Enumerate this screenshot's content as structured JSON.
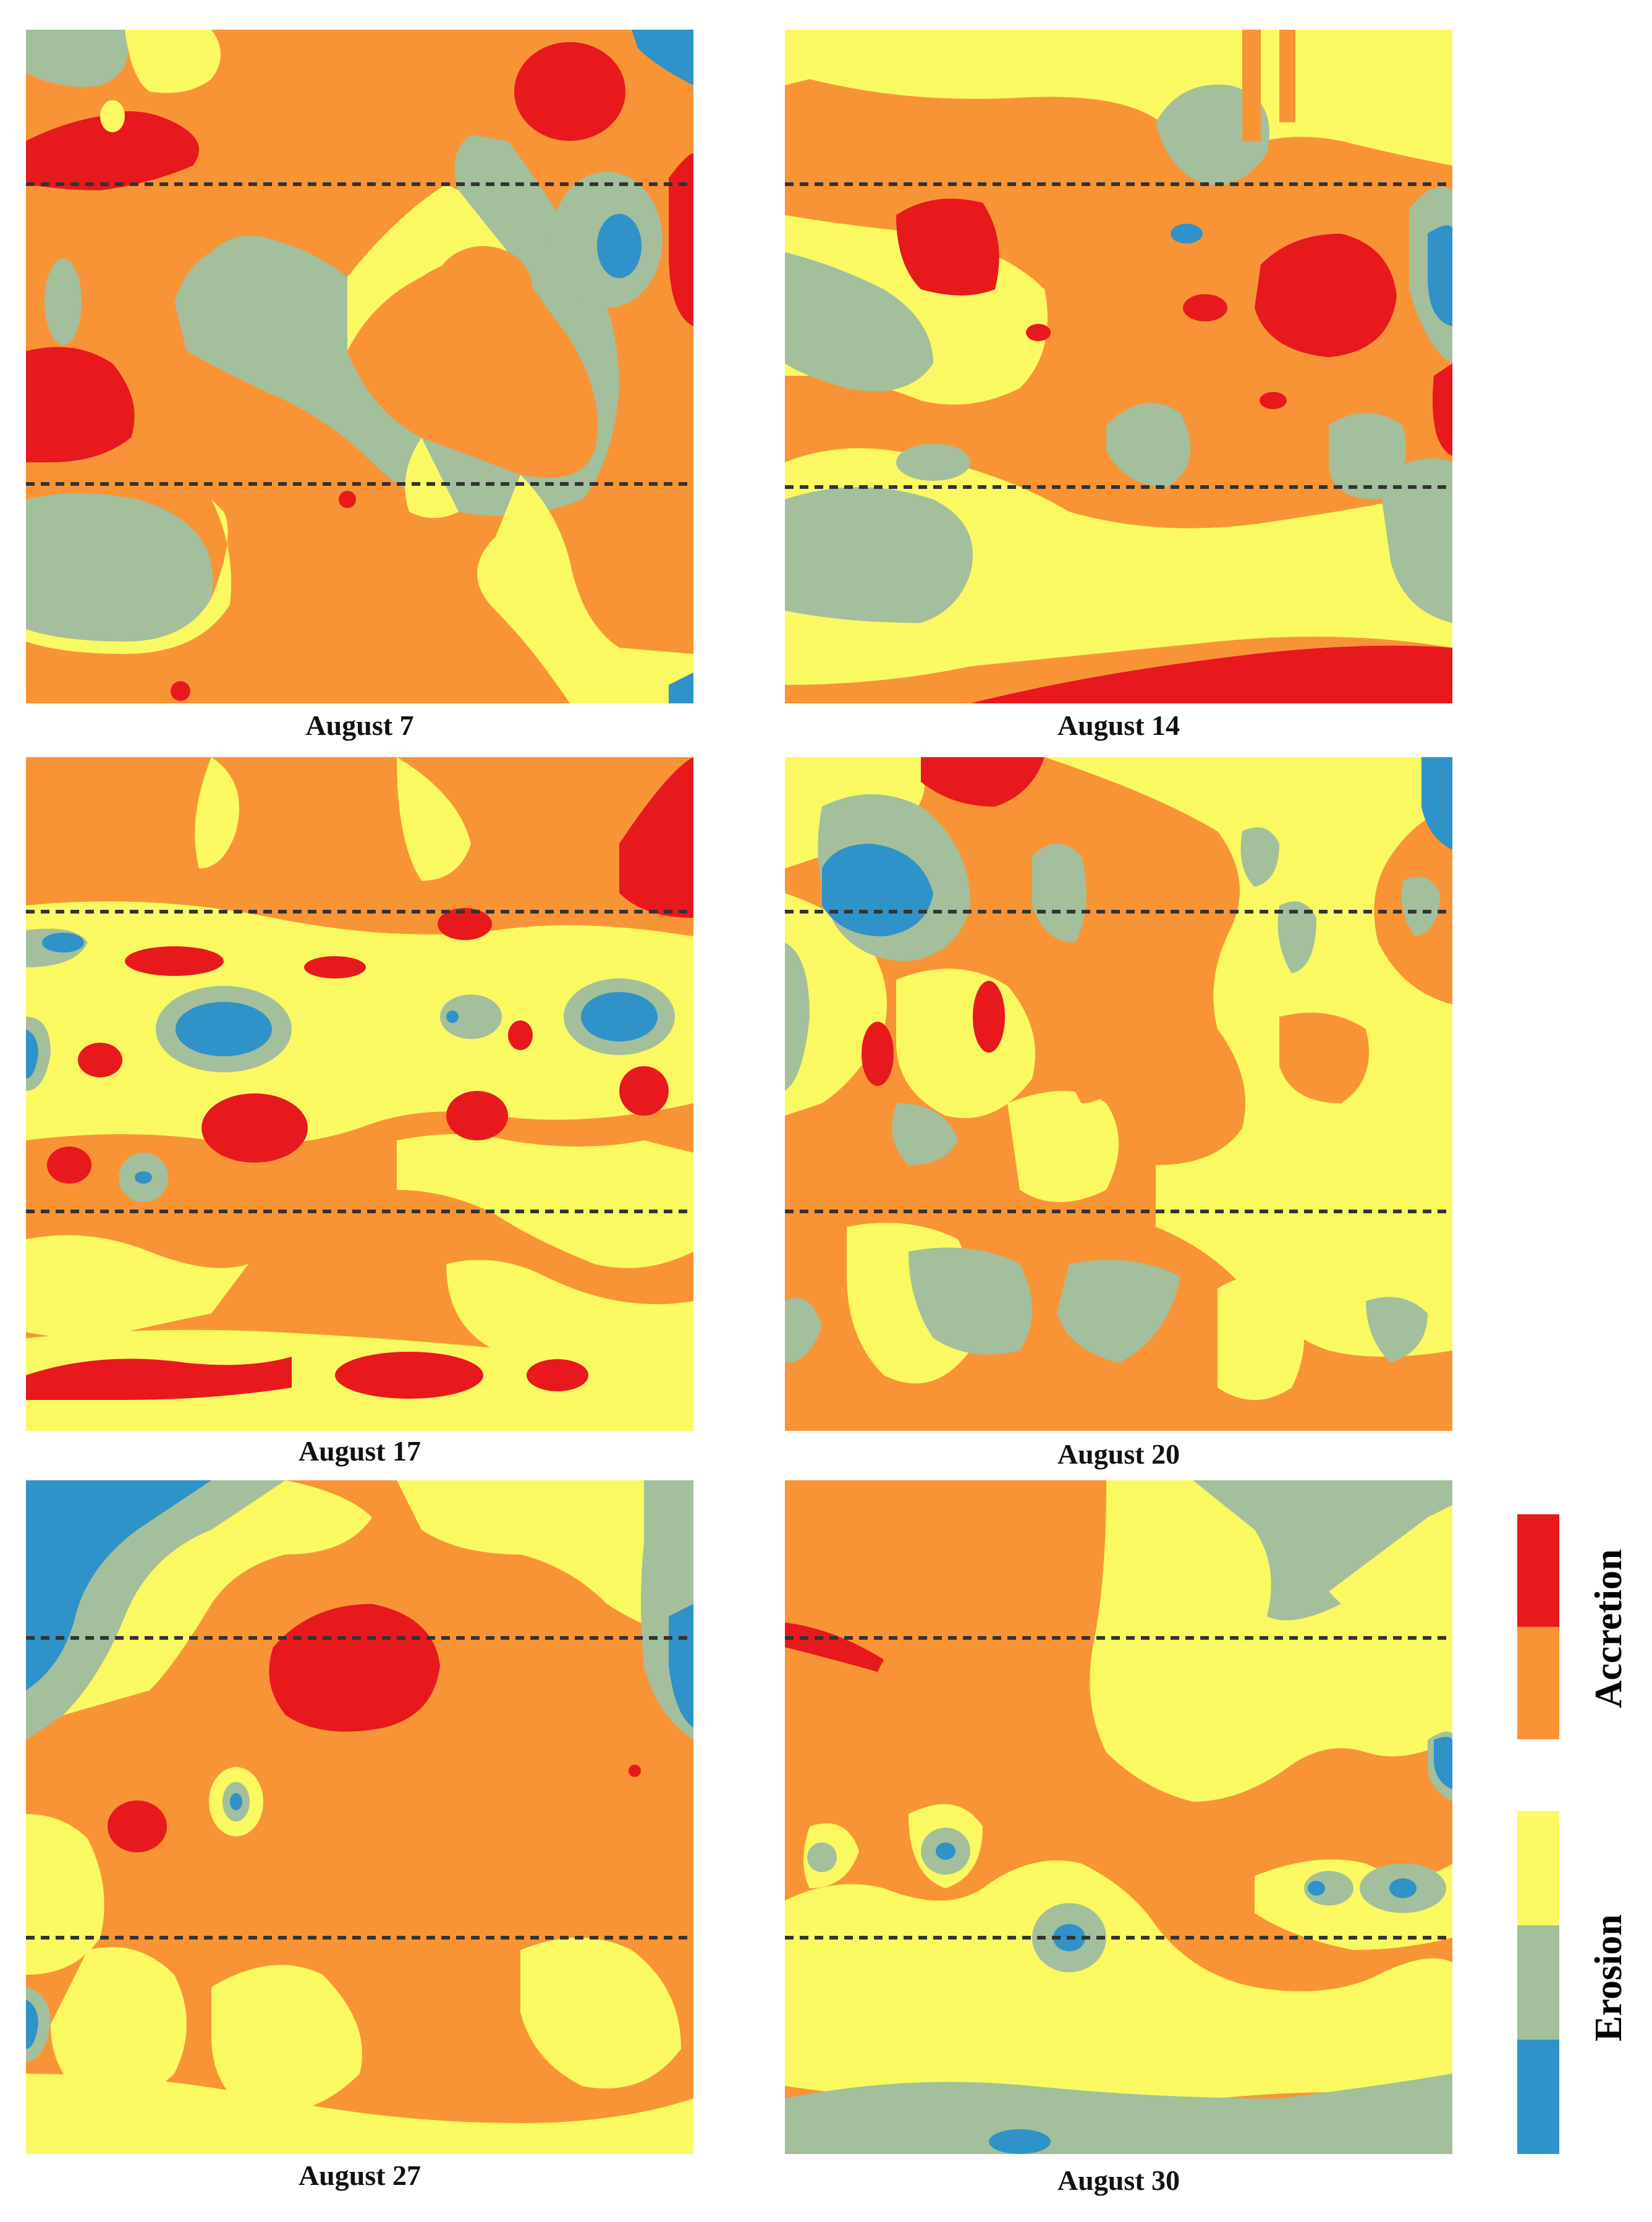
{
  "figure": {
    "panels": [
      {
        "id": "aug7",
        "caption": "August 7"
      },
      {
        "id": "aug14",
        "caption": "August 14"
      },
      {
        "id": "aug17",
        "caption": "August 17"
      },
      {
        "id": "aug20",
        "caption": "August 20"
      },
      {
        "id": "aug27",
        "caption": "August 27"
      },
      {
        "id": "aug30",
        "caption": "August 30"
      }
    ]
  },
  "legend": {
    "accretion_label": "Accretion",
    "erosion_label": "Erosion",
    "classes": [
      {
        "group": "Accretion",
        "color": "#e8191c"
      },
      {
        "group": "Accretion",
        "color": "#f99436"
      },
      {
        "group": "Erosion",
        "color": "#fbf962"
      },
      {
        "group": "Erosion",
        "color": "#a3bf9c"
      },
      {
        "group": "Erosion",
        "color": "#2f92c8"
      }
    ]
  },
  "colors": {
    "strong_accretion": "#e8191c",
    "accretion": "#f99436",
    "light_erosion": "#fbf962",
    "erosion": "#a3bf9c",
    "strong_erosion": "#2f92c8",
    "reference_line": "#333333"
  }
}
